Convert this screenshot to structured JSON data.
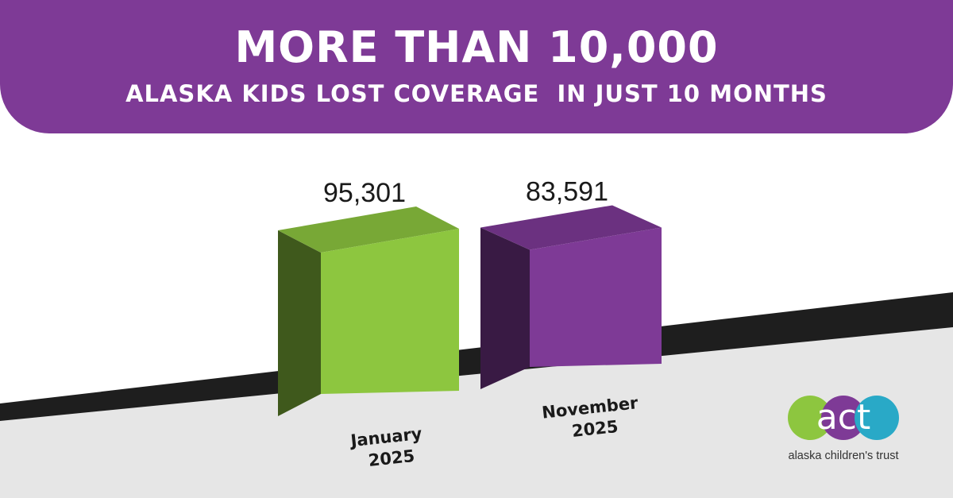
{
  "header": {
    "title": "MORE THAN 10,000",
    "subtitle": "ALASKA KIDS LOST COVERAGE  IN JUST 10 MONTHS"
  },
  "chart_data": {
    "type": "bar",
    "categories": [
      "January 2025",
      "November 2025"
    ],
    "category_lines": [
      [
        "January",
        "2025"
      ],
      [
        "November",
        "2025"
      ]
    ],
    "values": [
      95301,
      83591
    ],
    "value_labels": [
      "95,301",
      "83,591"
    ],
    "bar_colors": [
      "#8dc63f",
      "#7e3a96"
    ],
    "xlabel": "",
    "ylabel": "",
    "grid": false
  },
  "colors": {
    "banner": "#7e3a96",
    "green": "#8dc63f",
    "purple": "#7e3a96",
    "teal": "#29a9c7",
    "floor": "#e6e6e6",
    "band": "#1e1e1e"
  },
  "logo": {
    "mark": "act",
    "caption": "alaska children's trust"
  }
}
